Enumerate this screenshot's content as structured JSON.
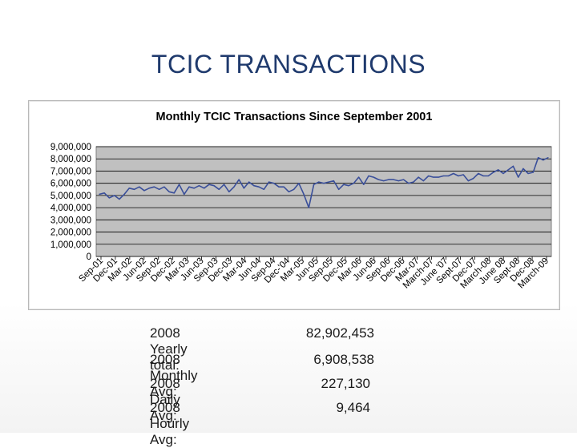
{
  "slide": {
    "title": "TCIC TRANSACTIONS"
  },
  "chart_data": {
    "type": "line",
    "title": "Monthly TCIC Transactions Since September 2001",
    "xlabel": "",
    "ylabel": "",
    "ylim": [
      0,
      9000000
    ],
    "yticks": [
      0,
      1000000,
      2000000,
      3000000,
      4000000,
      5000000,
      6000000,
      7000000,
      8000000,
      9000000
    ],
    "ytick_labels": [
      "0",
      "1,000,000",
      "2,000,000",
      "3,000,000",
      "4,000,000",
      "5,000,000",
      "6,000,000",
      "7,000,000",
      "8,000,000",
      "9,000,000"
    ],
    "grid": true,
    "legend": "none",
    "colors": {
      "line": "#3a4f9a",
      "plot_bg": "#c0c0c0",
      "grid": "#000000"
    },
    "x_labels": [
      "Sep-01",
      "Dec-01",
      "Mar-02",
      "Jun-02",
      "Sep-02",
      "Dec-02",
      "Mar-03",
      "Jun-03",
      "Sep-03",
      "Dec-03",
      "Mar-04",
      "Jun-04",
      "Sep-04",
      "Dec-'04",
      "Mar-05",
      "Jun-05",
      "Sep-05",
      "Dec-05",
      "Mar-06",
      "Jun-06",
      "Sep-06",
      "Dec-06",
      "Mar-07",
      "March-07",
      "June '07",
      "Sept-07",
      "Dec-07",
      "March-08",
      "June 08",
      "Sept-08",
      "Dec-08",
      "March-09"
    ],
    "series": [
      {
        "name": "Monthly TCIC Transactions",
        "values": [
          5100000,
          5200000,
          4800000,
          5000000,
          4700000,
          5100000,
          5600000,
          5500000,
          5700000,
          5400000,
          5600000,
          5700000,
          5500000,
          5700000,
          5300000,
          5200000,
          5900000,
          5100000,
          5700000,
          5600000,
          5800000,
          5600000,
          5900000,
          5800000,
          5500000,
          5900000,
          5300000,
          5700000,
          6300000,
          5600000,
          6100000,
          5800000,
          5700000,
          5500000,
          6100000,
          6000000,
          5700000,
          5700000,
          5300000,
          5500000,
          6000000,
          5100000,
          4000000,
          5900000,
          6100000,
          6000000,
          6100000,
          6200000,
          5500000,
          5900000,
          5800000,
          6000000,
          6500000,
          5900000,
          6600000,
          6500000,
          6300000,
          6200000,
          6300000,
          6300000,
          6200000,
          6300000,
          6000000,
          6100000,
          6500000,
          6200000,
          6600000,
          6500000,
          6500000,
          6600000,
          6600000,
          6800000,
          6600000,
          6700000,
          6200000,
          6400000,
          6800000,
          6600000,
          6600000,
          6900000,
          7100000,
          6800000,
          7100000,
          7400000,
          6500000,
          7200000,
          6800000,
          6900000,
          8100000,
          7900000,
          8100000
        ]
      }
    ]
  },
  "stats": [
    {
      "label": "2008 Yearly total:",
      "value": "82,902,453"
    },
    {
      "label": "2008 Monthly Avg:",
      "value": "6,908,538"
    },
    {
      "label": "2008 Daily Avg:",
      "value": "227,130"
    },
    {
      "label": "2008 Hourly Avg:",
      "value": "9,464"
    }
  ]
}
